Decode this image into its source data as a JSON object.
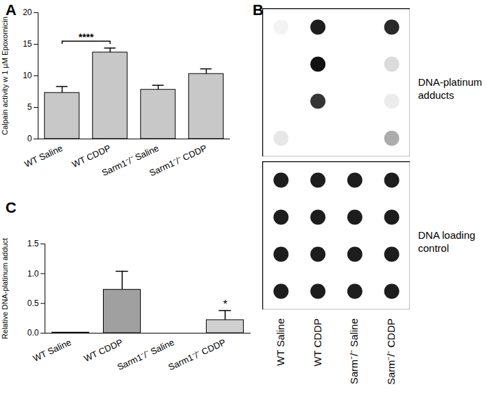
{
  "chart_data": [
    {
      "type": "bar",
      "panel": "A",
      "ylabel": "Calpain activity w 1 µM Epoxomicin",
      "categories": [
        "WT Saline",
        "WT CDDP",
        "Sarm1⁻/⁻ Saline",
        "Sarm1⁻/⁻ CDDP"
      ],
      "values": [
        7.3,
        13.7,
        7.8,
        10.3
      ],
      "errors": [
        1.0,
        0.7,
        0.7,
        0.8
      ],
      "colors": [
        "#c8c8c8",
        "#c8c8c8",
        "#c8c8c8",
        "#c8c8c8"
      ],
      "ylim": [
        0,
        20
      ],
      "yticks": [
        0,
        5,
        10,
        15,
        20
      ],
      "annotations": [
        {
          "text": "****",
          "from": "WT Saline",
          "to": "WT CDDP",
          "y": 15.5
        }
      ]
    },
    {
      "type": "dot_blot",
      "panel": "B",
      "columns": [
        "WT Saline",
        "WT CDDP",
        "Sarm⁻/⁻ Saline",
        "Sarm⁻/⁻ CDDP"
      ],
      "intensity_range": [
        0,
        1
      ],
      "blots": [
        {
          "label": "DNA-platinum adducts",
          "intensity": [
            [
              0.05,
              0.95,
              0,
              0.9
            ],
            [
              0,
              1,
              0,
              0.15
            ],
            [
              0,
              0.85,
              0,
              0.08
            ],
            [
              0.1,
              0,
              0,
              0.35
            ]
          ]
        },
        {
          "label": "DNA loading control",
          "intensity": [
            [
              0.95,
              0.95,
              0.95,
              0.95
            ],
            [
              0.95,
              0.95,
              0.95,
              0.95
            ],
            [
              0.95,
              0.95,
              0.95,
              0.95
            ],
            [
              0.95,
              0.95,
              0.95,
              0.95
            ]
          ]
        }
      ]
    },
    {
      "type": "bar",
      "panel": "C",
      "ylabel": "Relative DNA-platinum adduct",
      "categories": [
        "WT Saline",
        "WT CDDP",
        "Sarm1⁻/⁻ Saline",
        "Sarm1⁻/⁻ CDDP"
      ],
      "values": [
        0.01,
        0.73,
        0,
        0.22
      ],
      "errors": [
        null,
        0.31,
        null,
        0.16
      ],
      "colors": [
        "#c0c0c0",
        "#a0a0a0",
        "#c8c8c8",
        "#d0d0d0"
      ],
      "ylim": [
        0,
        1.5
      ],
      "yticks": [
        {
          "value": 0,
          "label": "0.0"
        },
        {
          "value": 0.5,
          "label": "0.5"
        },
        {
          "value": 1,
          "label": "1.0"
        },
        {
          "value": 1.5,
          "label": "1.5"
        }
      ],
      "annotations": [
        {
          "text": "*",
          "at": "Sarm1⁻/⁻ CDDP",
          "y": 0.42
        }
      ]
    }
  ]
}
